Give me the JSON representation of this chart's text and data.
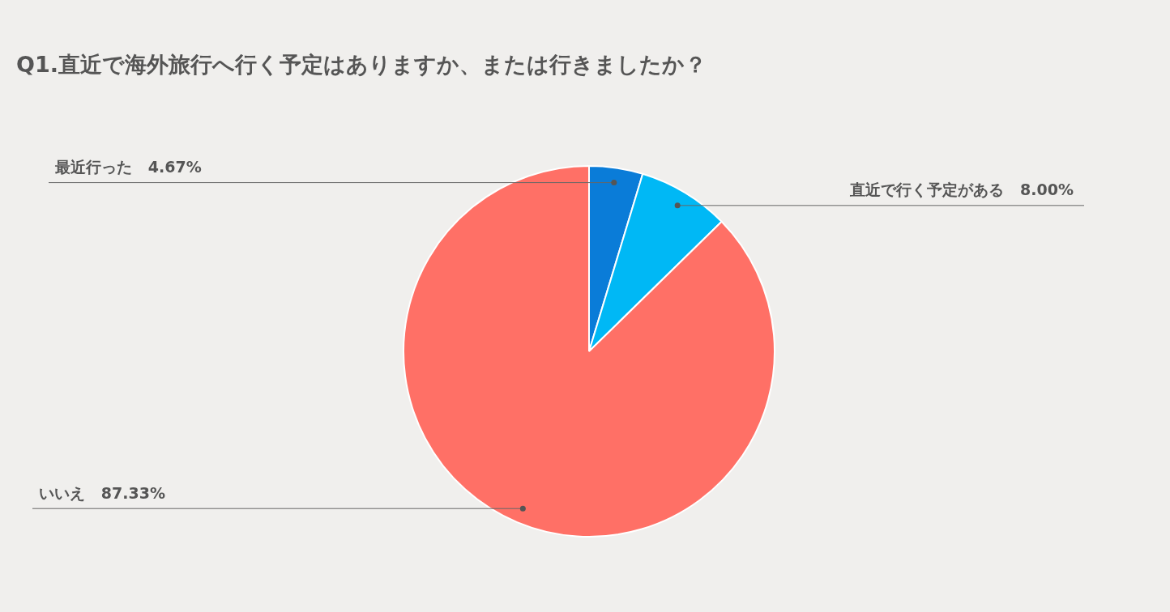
{
  "chart_data": {
    "type": "pie",
    "title": "Q1.直近で海外旅行へ行く予定はありますか、または行きましたか？",
    "categories": [
      "最近行った",
      "直近で行く予定がある",
      "いいえ"
    ],
    "values": [
      4.67,
      8,
      87.33
    ],
    "colors": [
      "#0a7cd8",
      "#00b8f5",
      "#ff7066"
    ],
    "value_labels": [
      "4.67%",
      "8.00%",
      "87.33%"
    ],
    "legend": false
  }
}
